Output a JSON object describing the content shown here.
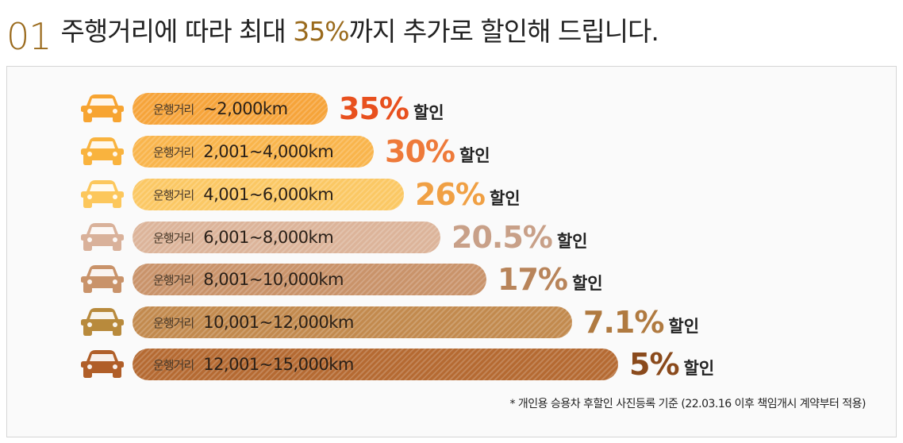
{
  "header": {
    "number": "01",
    "title_before": "주행거리에 따라 최대 ",
    "title_highlight": "35%",
    "title_after": "까지 추가로 할인해 드립니다."
  },
  "tiers": [
    {
      "label": "운행거리",
      "range": "~2,000km",
      "discount": "35%",
      "suffix": "할인",
      "bar_color": "#f6a43a",
      "pct_color": "#e8501e"
    },
    {
      "label": "운행거리",
      "range": "2,001~4,000km",
      "discount": "30%",
      "suffix": "할인",
      "bar_color": "#f9b54c",
      "pct_color": "#ee7a3a"
    },
    {
      "label": "운행거리",
      "range": "4,001~6,000km",
      "discount": "26%",
      "suffix": "할인",
      "bar_color": "#fbc864",
      "pct_color": "#f0a044"
    },
    {
      "label": "운행거리",
      "range": "6,001~8,000km",
      "discount": "20.5%",
      "suffix": "할인",
      "bar_color": "#dcb49a",
      "pct_color": "#c8a088"
    },
    {
      "label": "운행거리",
      "range": "8,001~10,000km",
      "discount": "17%",
      "suffix": "할인",
      "bar_color": "#c9936a",
      "pct_color": "#b8845a"
    },
    {
      "label": "운행거리",
      "range": "10,001~12,000km",
      "discount": "7.1%",
      "suffix": "할인",
      "bar_color": "#c28a4e",
      "pct_color": "#b07a40"
    },
    {
      "label": "운행거리",
      "range": "12,001~15,000km",
      "discount": "5%",
      "suffix": "할인",
      "bar_color": "#b56a32",
      "pct_color": "#8a4a1c"
    }
  ],
  "car_colors": [
    "#f7a431",
    "#f9b33e",
    "#fcc75c",
    "#d9b19a",
    "#c9936a",
    "#b88a3c",
    "#b05e28"
  ],
  "note": "* 개인용 승용차 후할인 사진등록 기준 (22.03.16 이후 책임개시 계약부터 적용)"
}
